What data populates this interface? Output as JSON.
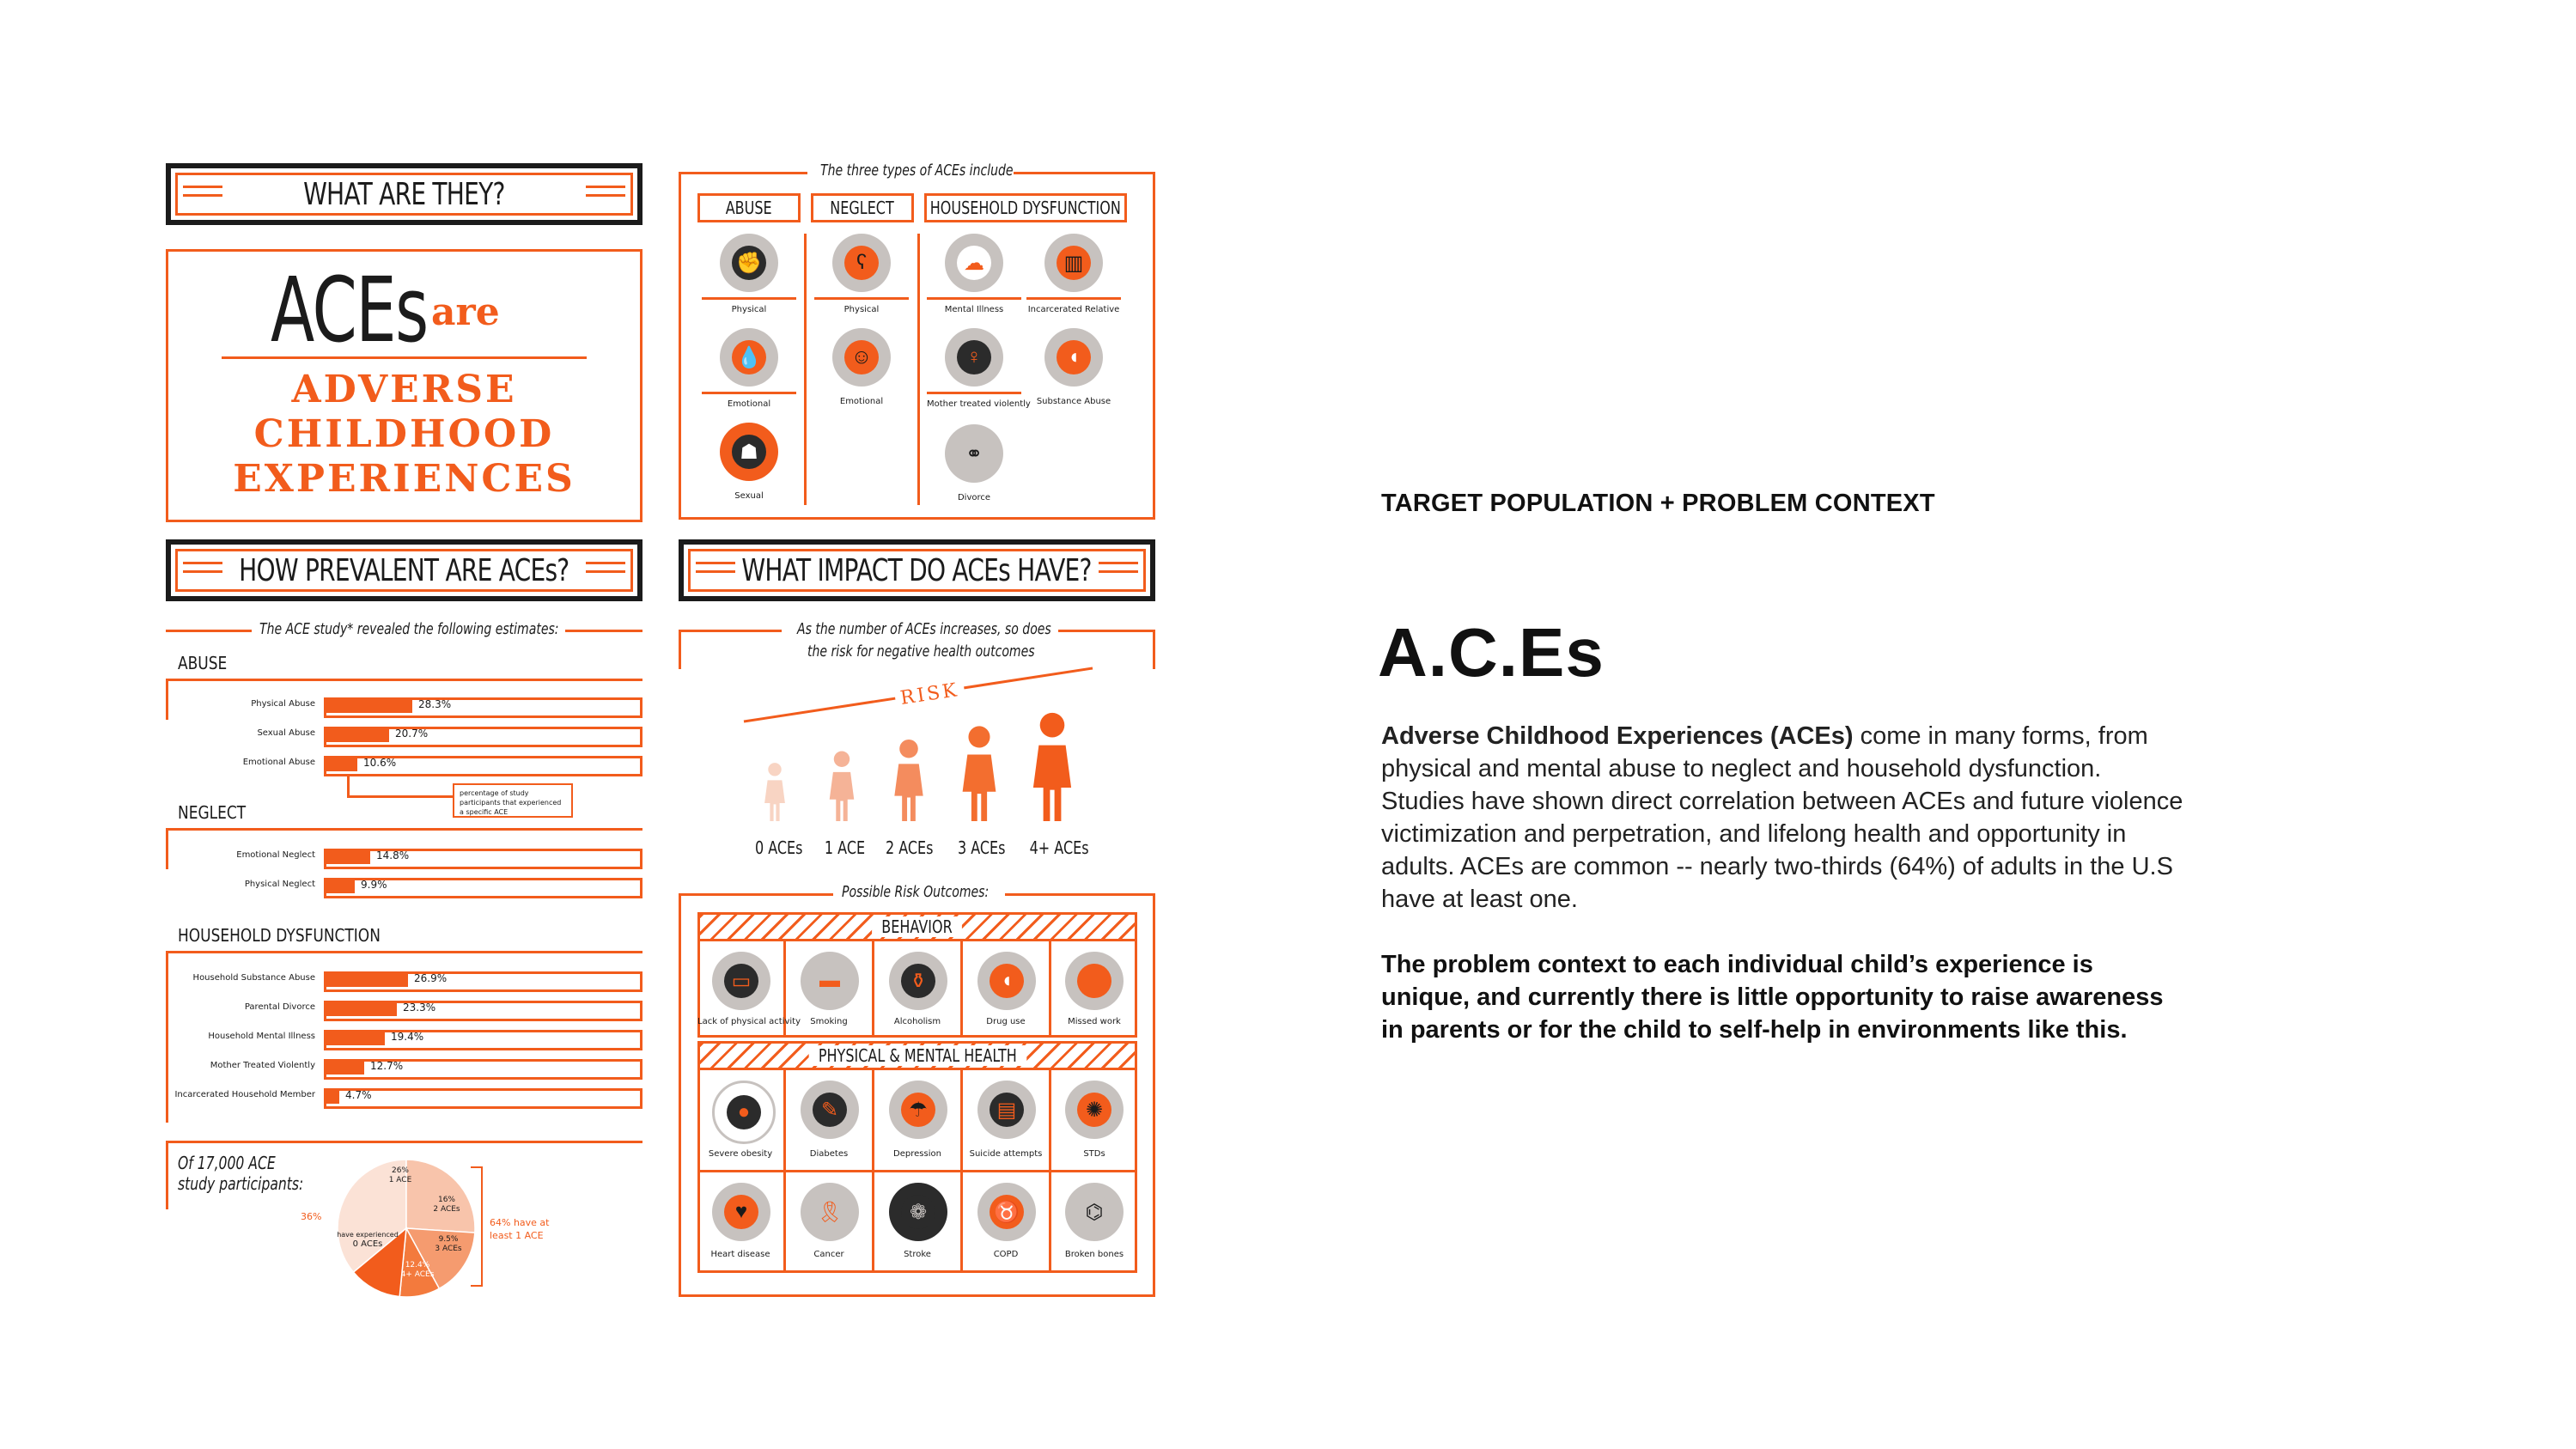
{
  "infographic": {
    "what_are_they": {
      "banner": "WHAT ARE THEY?",
      "aces": "ACEs",
      "are": "are",
      "line1": "ADVERSE",
      "line2": "CHILDHOOD",
      "line3": "EXPERIENCES"
    },
    "types": {
      "caption": "The three types of ACEs include",
      "columns": [
        "ABUSE",
        "NEGLECT",
        "HOUSEHOLD DYSFUNCTION"
      ],
      "abuse": [
        "Physical",
        "Emotional",
        "Sexual"
      ],
      "neglect": [
        "Physical",
        "Emotional"
      ],
      "household": [
        "Mental Illness",
        "Incarcerated Relative",
        "Mother treated violently",
        "Substance Abuse",
        "Divorce"
      ]
    },
    "prevalence": {
      "banner": "HOW PREVALENT ARE ACEs?",
      "caption": "The ACE study* revealed the following estimates:",
      "abuse_head": "ABUSE",
      "abuse": [
        {
          "label": "Physical Abuse",
          "value": "28.3%",
          "pct": 28.3
        },
        {
          "label": "Sexual Abuse",
          "value": "20.7%",
          "pct": 20.7
        },
        {
          "label": "Emotional Abuse",
          "value": "10.6%",
          "pct": 10.6
        }
      ],
      "callout": "percentage of study participants that experienced a specific ACE",
      "neglect_head": "NEGLECT",
      "neglect": [
        {
          "label": "Emotional Neglect",
          "value": "14.8%",
          "pct": 14.8
        },
        {
          "label": "Physical Neglect",
          "value": "9.9%",
          "pct": 9.9
        }
      ],
      "household_head": "HOUSEHOLD DYSFUNCTION",
      "household": [
        {
          "label": "Household Substance Abuse",
          "value": "26.9%",
          "pct": 26.9
        },
        {
          "label": "Parental Divorce",
          "value": "23.3%",
          "pct": 23.3
        },
        {
          "label": "Household Mental Illness",
          "value": "19.4%",
          "pct": 19.4
        },
        {
          "label": "Mother Treated Violently",
          "value": "12.7%",
          "pct": 12.7
        },
        {
          "label": "Incarcerated Household Member",
          "value": "4.7%",
          "pct": 4.7
        }
      ],
      "participants_1": "Of 17,000 ACE",
      "participants_2": "study participants:",
      "pie": [
        {
          "label": "0 ACEs",
          "pct": 36,
          "text": "36%"
        },
        {
          "label": "1 ACE",
          "pct": 26,
          "text": "26%"
        },
        {
          "label": "2 ACEs",
          "pct": 16,
          "text": "16%"
        },
        {
          "label": "3 ACEs",
          "pct": 9.5,
          "text": "9.5%"
        },
        {
          "label": "4+ ACEs",
          "pct": 12.4,
          "text": "12.4%"
        }
      ],
      "pie_zero_1": "have experienced",
      "pie_zero_2": "0 ACEs",
      "pie_note_1": "64% have at",
      "pie_note_2": "least 1 ACE"
    },
    "impact": {
      "banner": "WHAT IMPACT DO ACEs HAVE?",
      "caption_1": "As the number of ACEs increases, so does",
      "caption_2": "the risk for negative health outcomes",
      "risk": "RISK",
      "figures": [
        "0 ACEs",
        "1 ACE",
        "2 ACEs",
        "3 ACEs",
        "4+ ACEs"
      ],
      "outcomes_caption": "Possible Risk Outcomes:",
      "behavior_head": "BEHAVIOR",
      "behavior": [
        "Lack of physical activity",
        "Smoking",
        "Alcoholism",
        "Drug use",
        "Missed work"
      ],
      "health_head": "PHYSICAL & MENTAL HEALTH",
      "health_row1": [
        "Severe obesity",
        "Diabetes",
        "Depression",
        "Suicide attempts",
        "STDs"
      ],
      "health_row2": [
        "Heart disease",
        "Cancer",
        "Stroke",
        "COPD",
        "Broken bones"
      ]
    }
  },
  "text_panel": {
    "eyebrow": "TARGET POPULATION + PROBLEM CONTEXT",
    "title": "A.C.Es",
    "para1_bold": "Adverse Childhood Experiences (ACEs)",
    "para1_rest": " come in many forms, from physical and mental abuse to neglect and household dysfunction. Studies have shown direct correlation between ACEs and future violence victimization and perpetration, and lifelong health and opportunity in adults. ACEs are common -- nearly two-thirds (64%) of adults in the U.S have at least one.",
    "para2": "The problem context to each individual child’s experience is unique, and currently there is little opportunity to raise awareness in parents or for the child to self-help in environments like this."
  },
  "colors": {
    "accent": "#f25c1c",
    "ink": "#1b1b1b",
    "pale": "#f6c9b4"
  }
}
